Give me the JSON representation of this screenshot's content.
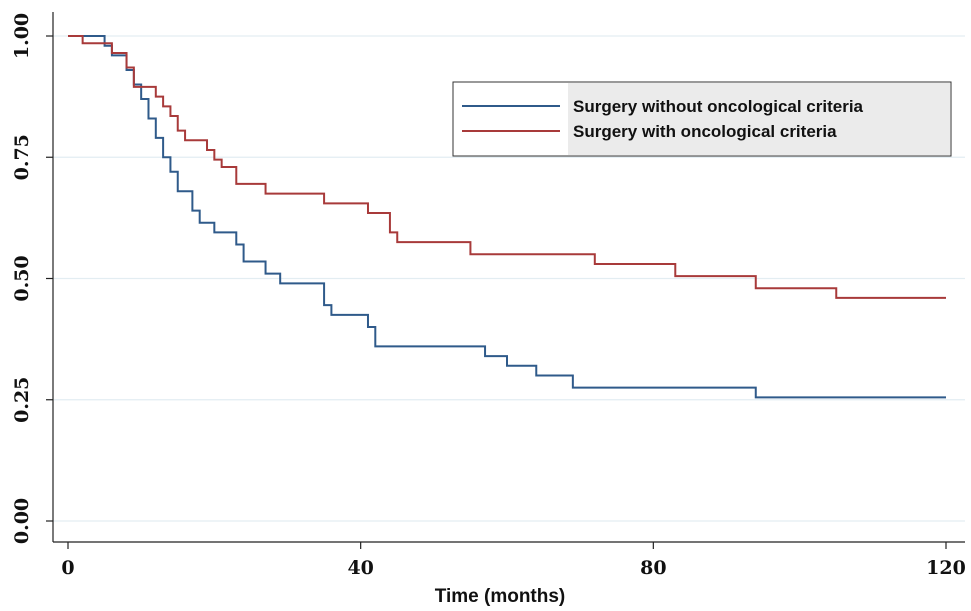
{
  "chart_data": {
    "type": "line",
    "title": "",
    "xlabel": "Time (months)",
    "ylabel": "",
    "xlim": [
      0,
      120
    ],
    "ylim": [
      0,
      1
    ],
    "x_ticks": [
      0,
      40,
      80,
      120
    ],
    "x_tick_labels": [
      "0",
      "40",
      "80",
      "120"
    ],
    "y_ticks": [
      0,
      0.25,
      0.5,
      0.75,
      1
    ],
    "y_tick_labels": [
      "0.00",
      "0.25",
      "0.50",
      "0.75",
      "1.00"
    ],
    "grid": "horizontal",
    "legend_position": "top-right",
    "series": [
      {
        "name": "Surgery without oncological criteria",
        "color": "#2f5a8a",
        "step": true,
        "x": [
          0,
          5,
          6,
          8,
          9,
          10,
          11,
          12,
          13,
          14,
          15,
          17,
          18,
          20,
          23,
          24,
          27,
          29,
          35,
          36,
          37,
          41,
          42,
          57,
          60,
          64,
          69,
          94,
          120
        ],
        "y": [
          1.0,
          0.98,
          0.96,
          0.93,
          0.9,
          0.87,
          0.83,
          0.79,
          0.75,
          0.72,
          0.68,
          0.64,
          0.615,
          0.595,
          0.57,
          0.535,
          0.51,
          0.49,
          0.445,
          0.425,
          0.425,
          0.4,
          0.36,
          0.34,
          0.32,
          0.3,
          0.275,
          0.255,
          0.255
        ]
      },
      {
        "name": "Surgery with oncological criteria",
        "color": "#a83a3a",
        "step": true,
        "x": [
          0,
          2,
          6,
          8,
          9,
          12,
          13,
          14,
          15,
          16,
          19,
          20,
          21,
          23,
          27,
          35,
          41,
          44,
          45,
          55,
          72,
          83,
          94,
          105,
          120
        ],
        "y": [
          1.0,
          0.985,
          0.965,
          0.935,
          0.895,
          0.875,
          0.855,
          0.835,
          0.805,
          0.785,
          0.765,
          0.745,
          0.73,
          0.695,
          0.675,
          0.655,
          0.635,
          0.595,
          0.575,
          0.55,
          0.53,
          0.505,
          0.48,
          0.46,
          0.46
        ]
      }
    ]
  }
}
